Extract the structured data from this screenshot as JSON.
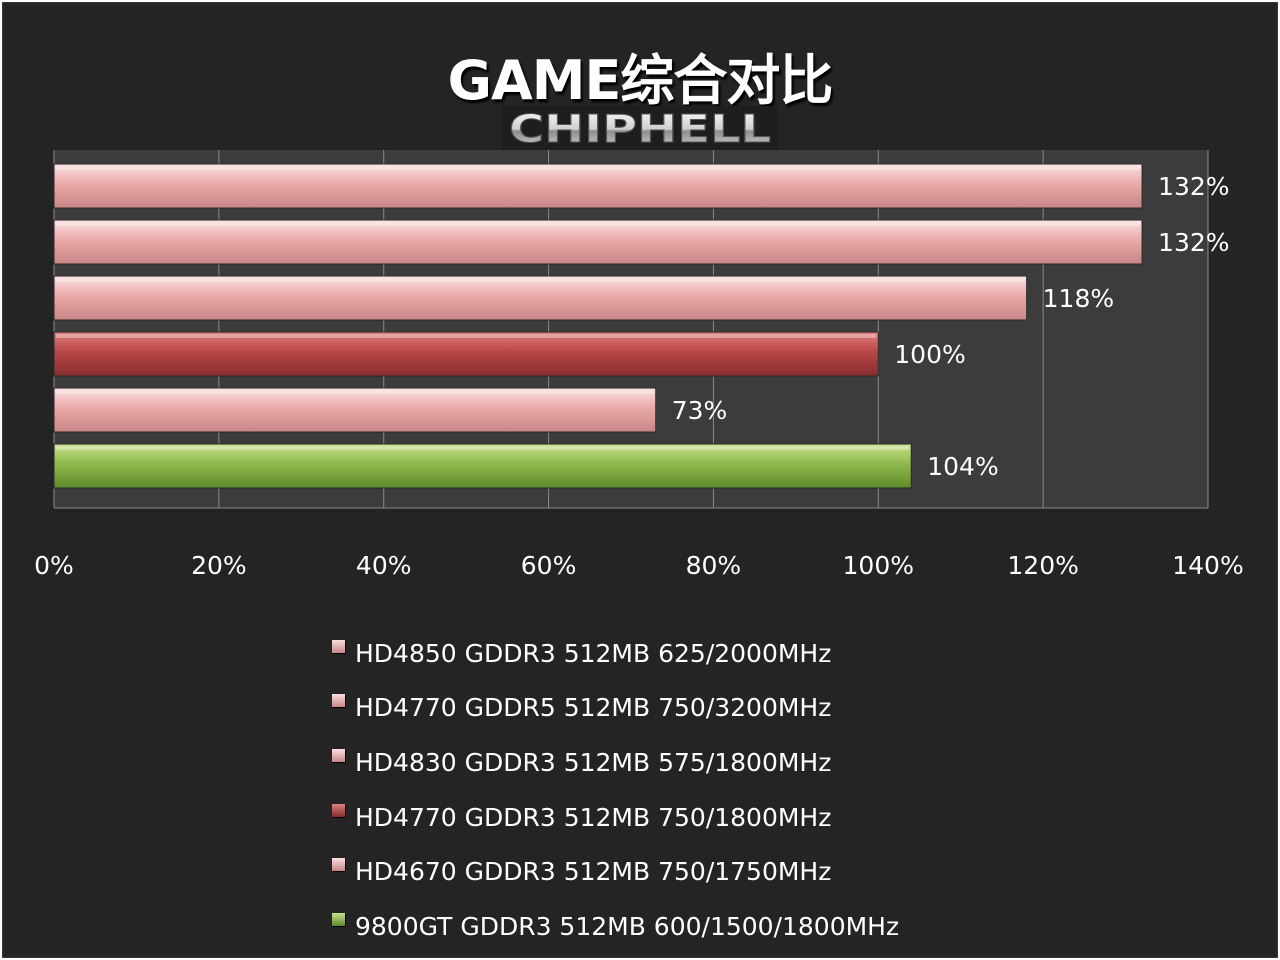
{
  "title": "GAME综合对比",
  "watermark": "CHIPHELL",
  "colors": {
    "background": "#242424",
    "plot_area": "#3c3c3c",
    "grid": "#8a8a8a",
    "pink_bar": "#e8a4a4",
    "red_bar": "#b94646",
    "green_bar": "#8fba4c",
    "text": "#ffffff"
  },
  "chart_data": {
    "type": "bar",
    "orientation": "horizontal",
    "title": "GAME综合对比",
    "xlabel": "",
    "ylabel": "",
    "xlim": [
      0,
      140
    ],
    "xticks": [
      0,
      20,
      40,
      60,
      80,
      100,
      120,
      140
    ],
    "tick_format": "%",
    "grid": true,
    "legend_position": "bottom",
    "series": [
      {
        "name": "HD4850 GDDR3 512MB 625/2000MHz",
        "value": 132,
        "label": "132%",
        "color": "#e8a4a4"
      },
      {
        "name": "HD4770 GDDR5 512MB 750/3200MHz",
        "value": 132,
        "label": "132%",
        "color": "#e8a4a4"
      },
      {
        "name": "HD4830 GDDR3 512MB 575/1800MHz",
        "value": 118,
        "label": "118%",
        "color": "#e8a4a4"
      },
      {
        "name": "HD4770 GDDR3 512MB 750/1800MHz",
        "value": 100,
        "label": "100%",
        "color": "#b94646"
      },
      {
        "name": "HD4670 GDDR3 512MB 750/1750MHz",
        "value": 73,
        "label": "73%",
        "color": "#e8a4a4"
      },
      {
        "name": "9800GT GDDR3 512MB 600/1500/1800MHz",
        "value": 104,
        "label": "104%",
        "color": "#8fba4c"
      }
    ]
  }
}
